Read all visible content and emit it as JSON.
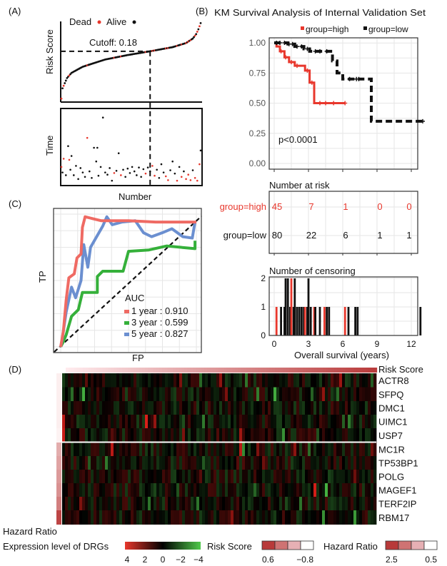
{
  "panels": {
    "a": "(A)",
    "b": "(B)",
    "c": "(C)",
    "d": "(D)"
  },
  "chart_data": [
    {
      "type": "scatter",
      "panel": "A-top",
      "ylabel": "Risk Score",
      "legend": {
        "dead": "Dead",
        "alive": "Alive"
      },
      "cutoff_label": "Cutoff: 0.18",
      "cutoff": 0.18,
      "cutoff_rank": 80,
      "n": 125,
      "curve": [
        [
          1,
          -1.2
        ],
        [
          2,
          -0.9
        ],
        [
          4,
          -0.75
        ],
        [
          6,
          -0.6
        ],
        [
          10,
          -0.45
        ],
        [
          20,
          -0.27
        ],
        [
          40,
          -0.06
        ],
        [
          60,
          0.07
        ],
        [
          80,
          0.18
        ],
        [
          100,
          0.3
        ],
        [
          112,
          0.42
        ],
        [
          118,
          0.55
        ],
        [
          121,
          0.68
        ],
        [
          123,
          0.82
        ],
        [
          125,
          1.0
        ]
      ],
      "colors": {
        "dead": "#e8372c",
        "alive": "#111111"
      }
    },
    {
      "type": "scatter",
      "panel": "A-bottom",
      "ylabel": "Time",
      "xlabel": "Number",
      "points": [
        [
          1,
          3,
          1
        ],
        [
          2,
          2,
          0
        ],
        [
          3,
          4.5,
          1
        ],
        [
          5,
          1.5,
          0
        ],
        [
          7,
          6.8,
          0
        ],
        [
          8,
          4.3,
          1
        ],
        [
          9,
          2.5,
          0
        ],
        [
          10,
          5,
          0
        ],
        [
          12,
          1.5,
          0
        ],
        [
          14,
          3.2,
          0
        ],
        [
          16,
          0.8,
          0
        ],
        [
          18,
          2.8,
          0
        ],
        [
          20,
          2,
          0
        ],
        [
          22,
          1.2,
          0
        ],
        [
          24,
          8.3,
          1
        ],
        [
          26,
          2.2,
          0
        ],
        [
          28,
          1,
          0
        ],
        [
          30,
          6.5,
          0
        ],
        [
          32,
          4,
          0
        ],
        [
          33,
          6.5,
          0
        ],
        [
          34,
          1.4,
          0
        ],
        [
          36,
          3,
          0
        ],
        [
          38,
          12,
          0
        ],
        [
          40,
          2,
          0
        ],
        [
          42,
          1.6,
          0
        ],
        [
          44,
          2.8,
          0
        ],
        [
          46,
          0.5,
          0
        ],
        [
          48,
          1.9,
          1
        ],
        [
          50,
          2.3,
          0
        ],
        [
          52,
          5.5,
          0
        ],
        [
          54,
          1.5,
          1
        ],
        [
          56,
          2.5,
          0
        ],
        [
          58,
          1.2,
          0
        ],
        [
          60,
          2.7,
          0
        ],
        [
          62,
          1.9,
          0
        ],
        [
          64,
          3.0,
          0
        ],
        [
          66,
          2.2,
          0
        ],
        [
          68,
          1.5,
          0
        ],
        [
          70,
          2.9,
          0
        ],
        [
          72,
          1.2,
          0
        ],
        [
          74,
          2.6,
          0
        ],
        [
          76,
          1.8,
          1
        ],
        [
          78,
          2.9,
          0
        ],
        [
          80,
          2.2,
          0
        ],
        [
          82,
          3.2,
          1
        ],
        [
          84,
          1.4,
          1
        ],
        [
          86,
          2.5,
          0
        ],
        [
          88,
          1.0,
          0
        ],
        [
          90,
          3.5,
          0
        ],
        [
          92,
          2.0,
          0
        ],
        [
          94,
          1.3,
          1
        ],
        [
          96,
          0.6,
          1
        ],
        [
          98,
          2.4,
          0
        ],
        [
          100,
          4.0,
          0
        ],
        [
          102,
          1.8,
          0
        ],
        [
          104,
          0.5,
          1
        ],
        [
          106,
          3.0,
          0
        ],
        [
          108,
          1.2,
          1
        ],
        [
          110,
          2.2,
          0
        ],
        [
          112,
          0.8,
          1
        ],
        [
          114,
          1.6,
          1
        ],
        [
          116,
          0.6,
          1
        ],
        [
          118,
          2.4,
          0
        ],
        [
          120,
          1.0,
          1
        ],
        [
          122,
          0.5,
          1
        ],
        [
          124,
          3.5,
          1
        ],
        [
          125,
          6.0,
          0
        ]
      ]
    },
    {
      "type": "line",
      "panel": "B",
      "title": "KM Survival Analysis of Internal Validation Set",
      "legend": [
        "group=high",
        "group=low"
      ],
      "yticks": [
        "0.00",
        "0.25",
        "0.50",
        "0.75",
        "1.00"
      ],
      "ylim": [
        0,
        1
      ],
      "xlim": [
        0,
        13
      ],
      "pvalue": "p<0.0001",
      "series": [
        {
          "name": "group=high",
          "color": "#e8372c",
          "values": [
            [
              0,
              1
            ],
            [
              0.2,
              0.97
            ],
            [
              0.5,
              0.93
            ],
            [
              0.9,
              0.88
            ],
            [
              1.3,
              0.84
            ],
            [
              1.8,
              0.81
            ],
            [
              2.7,
              0.77
            ],
            [
              3.1,
              0.67
            ],
            [
              3.5,
              0.5
            ],
            [
              6.2,
              0.5
            ]
          ],
          "censor": [
            0.6,
            1.0,
            1.5,
            2.0,
            2.9,
            3.3,
            4.0,
            4.5,
            5.2,
            6.2
          ]
        },
        {
          "name": "group=low",
          "color": "#111111",
          "values": [
            [
              0,
              1
            ],
            [
              1.2,
              0.99
            ],
            [
              1.8,
              0.97
            ],
            [
              2.6,
              0.95
            ],
            [
              3.1,
              0.93
            ],
            [
              5.0,
              0.93
            ],
            [
              5.1,
              0.85
            ],
            [
              5.5,
              0.75
            ],
            [
              6.0,
              0.7
            ],
            [
              8.4,
              0.7
            ],
            [
              8.5,
              0.35
            ],
            [
              13,
              0.35
            ]
          ],
          "censor": [
            0.2,
            0.5,
            0.9,
            1.3,
            1.6,
            2.0,
            2.4,
            2.9,
            3.6,
            4.0,
            4.6,
            6.6,
            7.2,
            7.4,
            13
          ]
        }
      ],
      "risk_table": {
        "title": "Number at risk",
        "rows": [
          {
            "label": "group=high",
            "values": [
              "45",
              "7",
              "1",
              "0",
              "0"
            ],
            "color": "#e8372c"
          },
          {
            "label": "group=low",
            "values": [
              "80",
              "22",
              "6",
              "1",
              "1"
            ],
            "color": "#111111"
          }
        ]
      },
      "censoring": {
        "title": "Number of censoring",
        "yticks": [
          "0",
          "1",
          "2"
        ],
        "xticks": [
          "0",
          "3",
          "6",
          "9",
          "12"
        ],
        "xlabel": "Overall survival (years)",
        "bars": [
          [
            0.2,
            1,
            "high"
          ],
          [
            0.6,
            1,
            "low"
          ],
          [
            0.9,
            1,
            "low"
          ],
          [
            1.0,
            2,
            "low"
          ],
          [
            1.2,
            2,
            "low"
          ],
          [
            1.4,
            1,
            "low"
          ],
          [
            1.5,
            2,
            "high"
          ],
          [
            1.7,
            1,
            "low"
          ],
          [
            1.8,
            2,
            "low"
          ],
          [
            2.0,
            1,
            "low"
          ],
          [
            2.2,
            1,
            "low"
          ],
          [
            2.4,
            1,
            "low"
          ],
          [
            2.6,
            1,
            "low"
          ],
          [
            2.7,
            1,
            "high"
          ],
          [
            2.9,
            1,
            "low"
          ],
          [
            3.0,
            2,
            "low"
          ],
          [
            3.2,
            1,
            "low"
          ],
          [
            3.5,
            1,
            "high"
          ],
          [
            3.6,
            1,
            "low"
          ],
          [
            4.0,
            1,
            "low"
          ],
          [
            4.4,
            1,
            "high"
          ],
          [
            4.6,
            1,
            "low"
          ],
          [
            4.8,
            1,
            "low"
          ],
          [
            6.2,
            1,
            "high"
          ],
          [
            6.5,
            1,
            "low"
          ],
          [
            7.1,
            1,
            "low"
          ],
          [
            7.3,
            1,
            "low"
          ],
          [
            12.8,
            1,
            "low"
          ]
        ]
      }
    },
    {
      "type": "line",
      "panel": "C",
      "xlabel": "FP",
      "ylabel": "TP",
      "xlim": [
        0,
        1
      ],
      "ylim": [
        0,
        1
      ],
      "legend_title": "AUC",
      "series": [
        {
          "name": "1 year : 0.910",
          "color": "#ef6a63",
          "values": [
            [
              0,
              0
            ],
            [
              0.02,
              0.12
            ],
            [
              0.04,
              0.35
            ],
            [
              0.06,
              0.52
            ],
            [
              0.1,
              0.55
            ],
            [
              0.12,
              0.67
            ],
            [
              0.15,
              0.7
            ],
            [
              0.16,
              0.9
            ],
            [
              0.18,
              0.98
            ],
            [
              0.3,
              0.95
            ],
            [
              0.5,
              0.95
            ],
            [
              0.7,
              0.94
            ],
            [
              1.0,
              0.94
            ]
          ]
        },
        {
          "name": "3 year : 0.599",
          "color": "#35b03a",
          "values": [
            [
              0,
              0
            ],
            [
              0.02,
              0.04
            ],
            [
              0.04,
              0.09
            ],
            [
              0.06,
              0.16
            ],
            [
              0.08,
              0.23
            ],
            [
              0.13,
              0.28
            ],
            [
              0.16,
              0.41
            ],
            [
              0.27,
              0.41
            ],
            [
              0.27,
              0.53
            ],
            [
              0.31,
              0.57
            ],
            [
              0.46,
              0.57
            ],
            [
              0.5,
              0.72
            ],
            [
              0.65,
              0.73
            ],
            [
              0.78,
              0.76
            ],
            [
              0.99,
              0.74
            ],
            [
              0.99,
              0.8
            ]
          ]
        },
        {
          "name": "5 year : 0.827",
          "color": "#6b8fd0",
          "values": [
            [
              0,
              0
            ],
            [
              0.01,
              0.05
            ],
            [
              0.04,
              0.26
            ],
            [
              0.08,
              0.45
            ],
            [
              0.11,
              0.37
            ],
            [
              0.15,
              0.5
            ],
            [
              0.17,
              0.77
            ],
            [
              0.2,
              0.6
            ],
            [
              0.22,
              0.75
            ],
            [
              0.31,
              0.91
            ],
            [
              0.34,
              0.98
            ],
            [
              0.38,
              0.92
            ],
            [
              0.45,
              0.94
            ],
            [
              0.55,
              0.95
            ],
            [
              0.61,
              0.86
            ],
            [
              0.67,
              0.83
            ],
            [
              0.75,
              0.86
            ],
            [
              0.82,
              0.89
            ],
            [
              0.9,
              0.83
            ],
            [
              0.97,
              0.82
            ],
            [
              0.99,
              0.94
            ]
          ]
        }
      ]
    },
    {
      "type": "heatmap",
      "panel": "D",
      "top_annotation": "Risk Score",
      "side_annotation": "Hazard Ratio",
      "genes": [
        "ACTR8",
        "SFPQ",
        "DMC1",
        "UIMC1",
        "USP7",
        "MC1R",
        "TP53BP1",
        "POLG",
        "MAGEF1",
        "TERF2IP",
        "RBM17"
      ],
      "hazard_ratio": [
        0.6,
        0.6,
        0.6,
        0.6,
        0.55,
        1.3,
        1.4,
        1.5,
        1.6,
        1.8,
        2.4
      ],
      "legends": {
        "expression": {
          "title": "Expression level of DRGs",
          "ticks": [
            "4",
            "2",
            "0",
            "−2",
            "−4"
          ],
          "colors": [
            "#e8372c",
            "#000000",
            "#4fc94a"
          ]
        },
        "risk": {
          "title": "Risk Score",
          "ticks": [
            "0.6",
            "−0.8"
          ],
          "colors": [
            "#b83a3a",
            "#cf7373",
            "#e6b0b4",
            "#ffffff"
          ]
        },
        "hazard": {
          "title": "Hazard Ratio",
          "ticks": [
            "2.5",
            "0.5"
          ],
          "colors": [
            "#b83a3a",
            "#cf7373",
            "#e6b0b4",
            "#ffffff"
          ]
        }
      }
    }
  ]
}
